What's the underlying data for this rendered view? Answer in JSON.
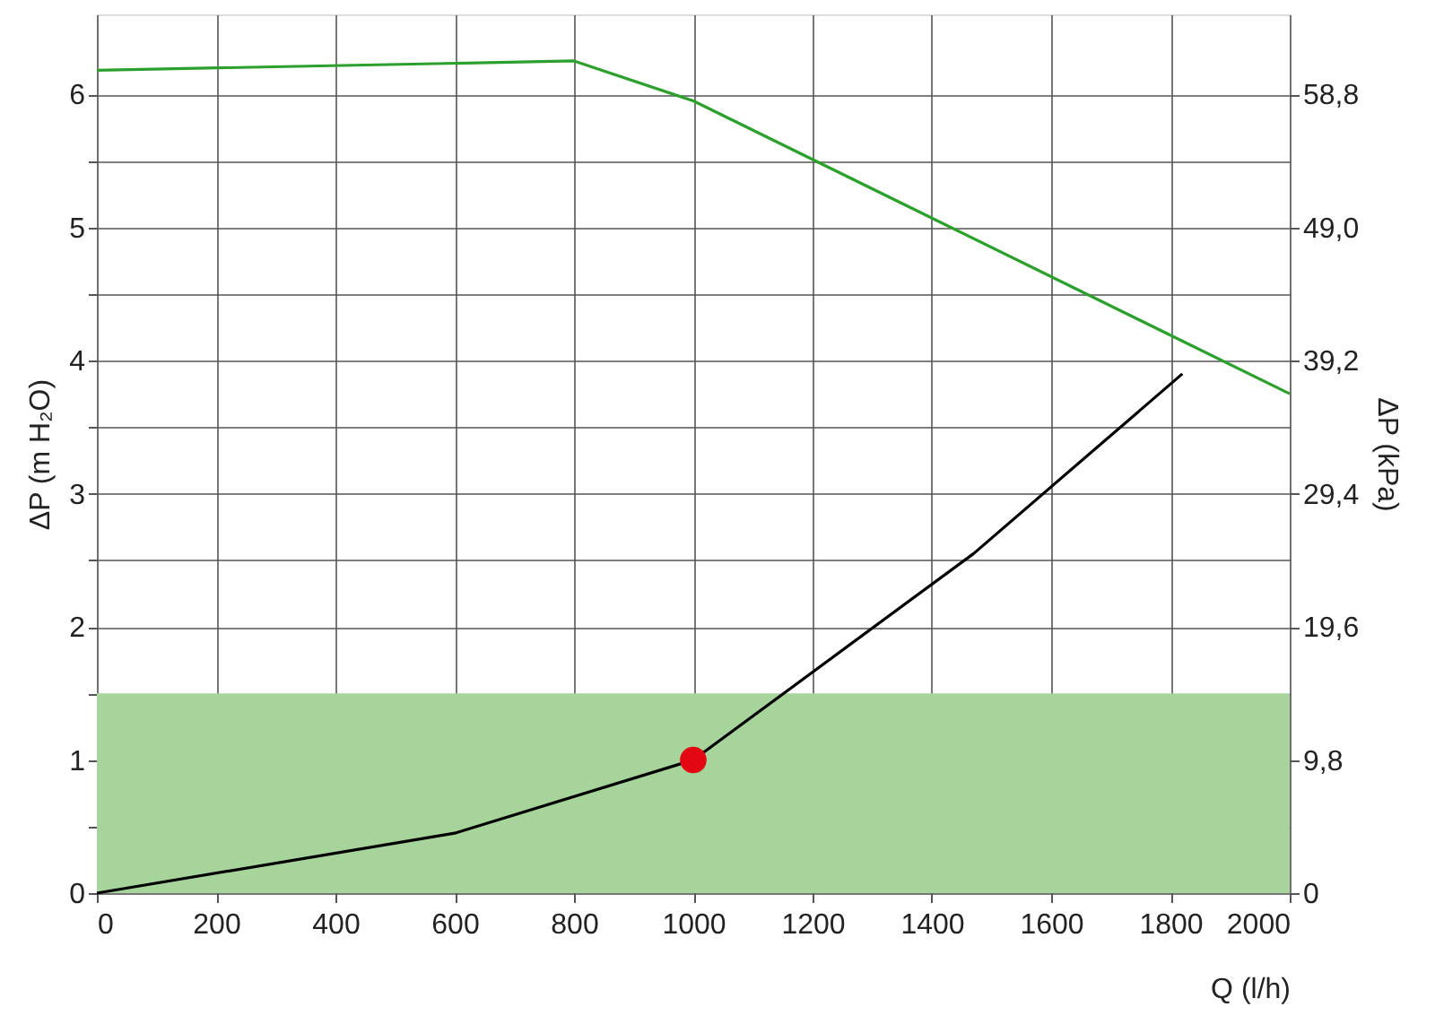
{
  "chart_data": {
    "type": "line",
    "xlabel": "Q (l/h)",
    "ylabel": "ΔP (m H₂O)",
    "y2label": "ΔP (kPa)",
    "xlim": [
      0,
      2000
    ],
    "xticks": [
      0,
      200,
      400,
      600,
      800,
      1000,
      1200,
      1400,
      1600,
      1800,
      2000
    ],
    "ylim": [
      0,
      6.6
    ],
    "yticks": [
      0,
      {
        "value": 0.5,
        "label": null
      },
      1,
      {
        "value": 1.5,
        "label": null
      },
      2,
      {
        "value": 2.5,
        "label": null
      },
      3,
      {
        "value": 3.5,
        "label": null
      },
      4,
      {
        "value": 4.5,
        "label": null
      },
      5,
      {
        "value": 5.5,
        "label": null
      },
      6
    ],
    "y2lim": [
      0,
      64.68
    ],
    "y2ticks": [
      0,
      {
        "value": 9.8,
        "label": "9,8"
      },
      {
        "value": 19.6,
        "label": "19,6"
      },
      {
        "value": 29.4,
        "label": "29,4"
      },
      {
        "value": 39.2,
        "label": "39,2"
      },
      {
        "value": 49.0,
        "label": "49,0"
      },
      {
        "value": 58.8,
        "label": "58,8"
      }
    ],
    "grid": true,
    "series": [
      {
        "color": "#2ca02c",
        "x": [
          0,
          800,
          1000,
          2000
        ],
        "values": [
          6.18,
          6.25,
          5.95,
          3.75
        ]
      },
      {
        "color": "#000000",
        "x": [
          0,
          600,
          1000,
          1470,
          1820
        ],
        "values": [
          0,
          0.45,
          1.0,
          2.55,
          3.9
        ]
      },
      {
        "type": "scatter",
        "color": "#e30613",
        "marker": "circle",
        "x": [
          1000
        ],
        "values": [
          1.0
        ]
      }
    ],
    "bands": [
      {
        "axis": "y",
        "from": 0,
        "to": 1.5,
        "color": "#a6d49a"
      }
    ]
  }
}
